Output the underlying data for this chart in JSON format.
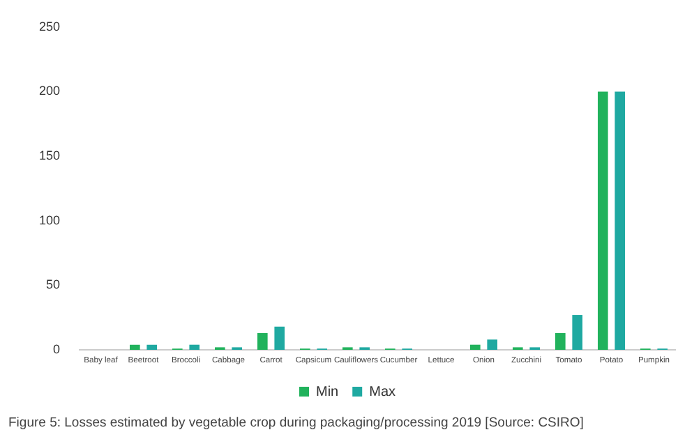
{
  "chart_data": {
    "type": "bar",
    "categories": [
      "Baby leaf",
      "Beetroot",
      "Broccoli",
      "Cabbage",
      "Carrot",
      "Capsicum",
      "Cauliflowers",
      "Cucumber",
      "Lettuce",
      "Onion",
      "Zucchini",
      "Tomato",
      "Potato",
      "Pumpkin"
    ],
    "series": [
      {
        "name": "Min",
        "color": "#21b25c",
        "values": [
          0,
          4,
          1,
          2,
          13,
          1,
          2,
          1,
          0,
          4,
          2,
          13,
          200,
          1
        ]
      },
      {
        "name": "Max",
        "color": "#1fa9a1",
        "values": [
          0,
          4,
          4,
          2,
          18,
          1,
          2,
          1,
          0,
          8,
          2,
          27,
          200,
          1
        ]
      }
    ],
    "ylim": [
      0,
      250
    ],
    "yticks": [
      0,
      50,
      100,
      150,
      200,
      250
    ],
    "grid": false,
    "legend": "bottom",
    "annotations": [
      "Figure 5: Losses estimated by vegetable crop during packaging/processing 2019 [Source: CSIRO]"
    ]
  }
}
